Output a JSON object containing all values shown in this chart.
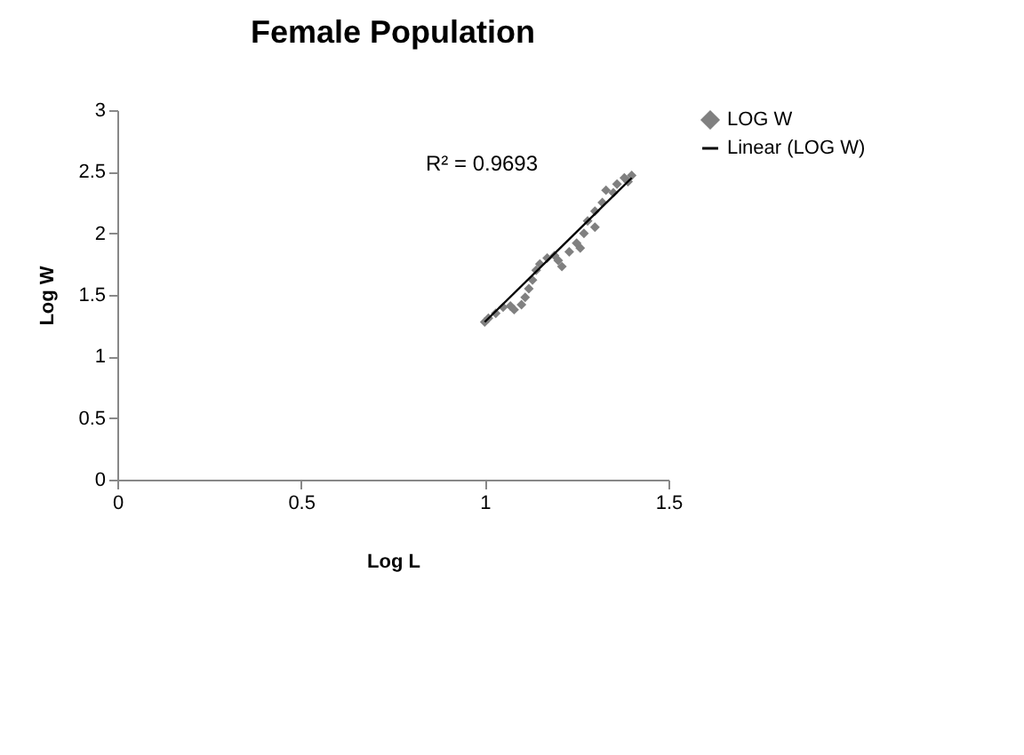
{
  "chart_data": {
    "type": "scatter",
    "title": "Female Population",
    "xlabel": "Log L",
    "ylabel": "Log W",
    "xlim": [
      0,
      1.5
    ],
    "xticks": [
      0,
      0.5,
      1,
      1.5
    ],
    "ylim": [
      0,
      3
    ],
    "yticks": [
      0,
      0.5,
      1,
      1.5,
      2,
      2.5,
      3
    ],
    "legend": "right",
    "grid": false,
    "annotations": [
      "R² = 0.9693"
    ],
    "series": [
      {
        "name": "LOG W",
        "color": "#808080",
        "marker": "diamond",
        "x": [
          1.0,
          1.01,
          1.03,
          1.05,
          1.07,
          1.08,
          1.1,
          1.11,
          1.12,
          1.13,
          1.14,
          1.15,
          1.17,
          1.19,
          1.2,
          1.21,
          1.23,
          1.25,
          1.26,
          1.27,
          1.28,
          1.3,
          1.3,
          1.32,
          1.33,
          1.35,
          1.36,
          1.38,
          1.4,
          1.39
        ],
        "values": [
          1.28,
          1.31,
          1.35,
          1.4,
          1.41,
          1.38,
          1.42,
          1.48,
          1.55,
          1.62,
          1.7,
          1.75,
          1.8,
          1.82,
          1.78,
          1.73,
          1.85,
          1.92,
          1.88,
          2.0,
          2.1,
          2.18,
          2.05,
          2.25,
          2.35,
          2.33,
          2.4,
          2.45,
          2.47,
          2.42
        ]
      },
      {
        "name": "Linear (LOG W)",
        "type": "line",
        "color": "#000000",
        "x": [
          1.0,
          1.4
        ],
        "values": [
          1.28,
          2.45
        ]
      }
    ]
  }
}
